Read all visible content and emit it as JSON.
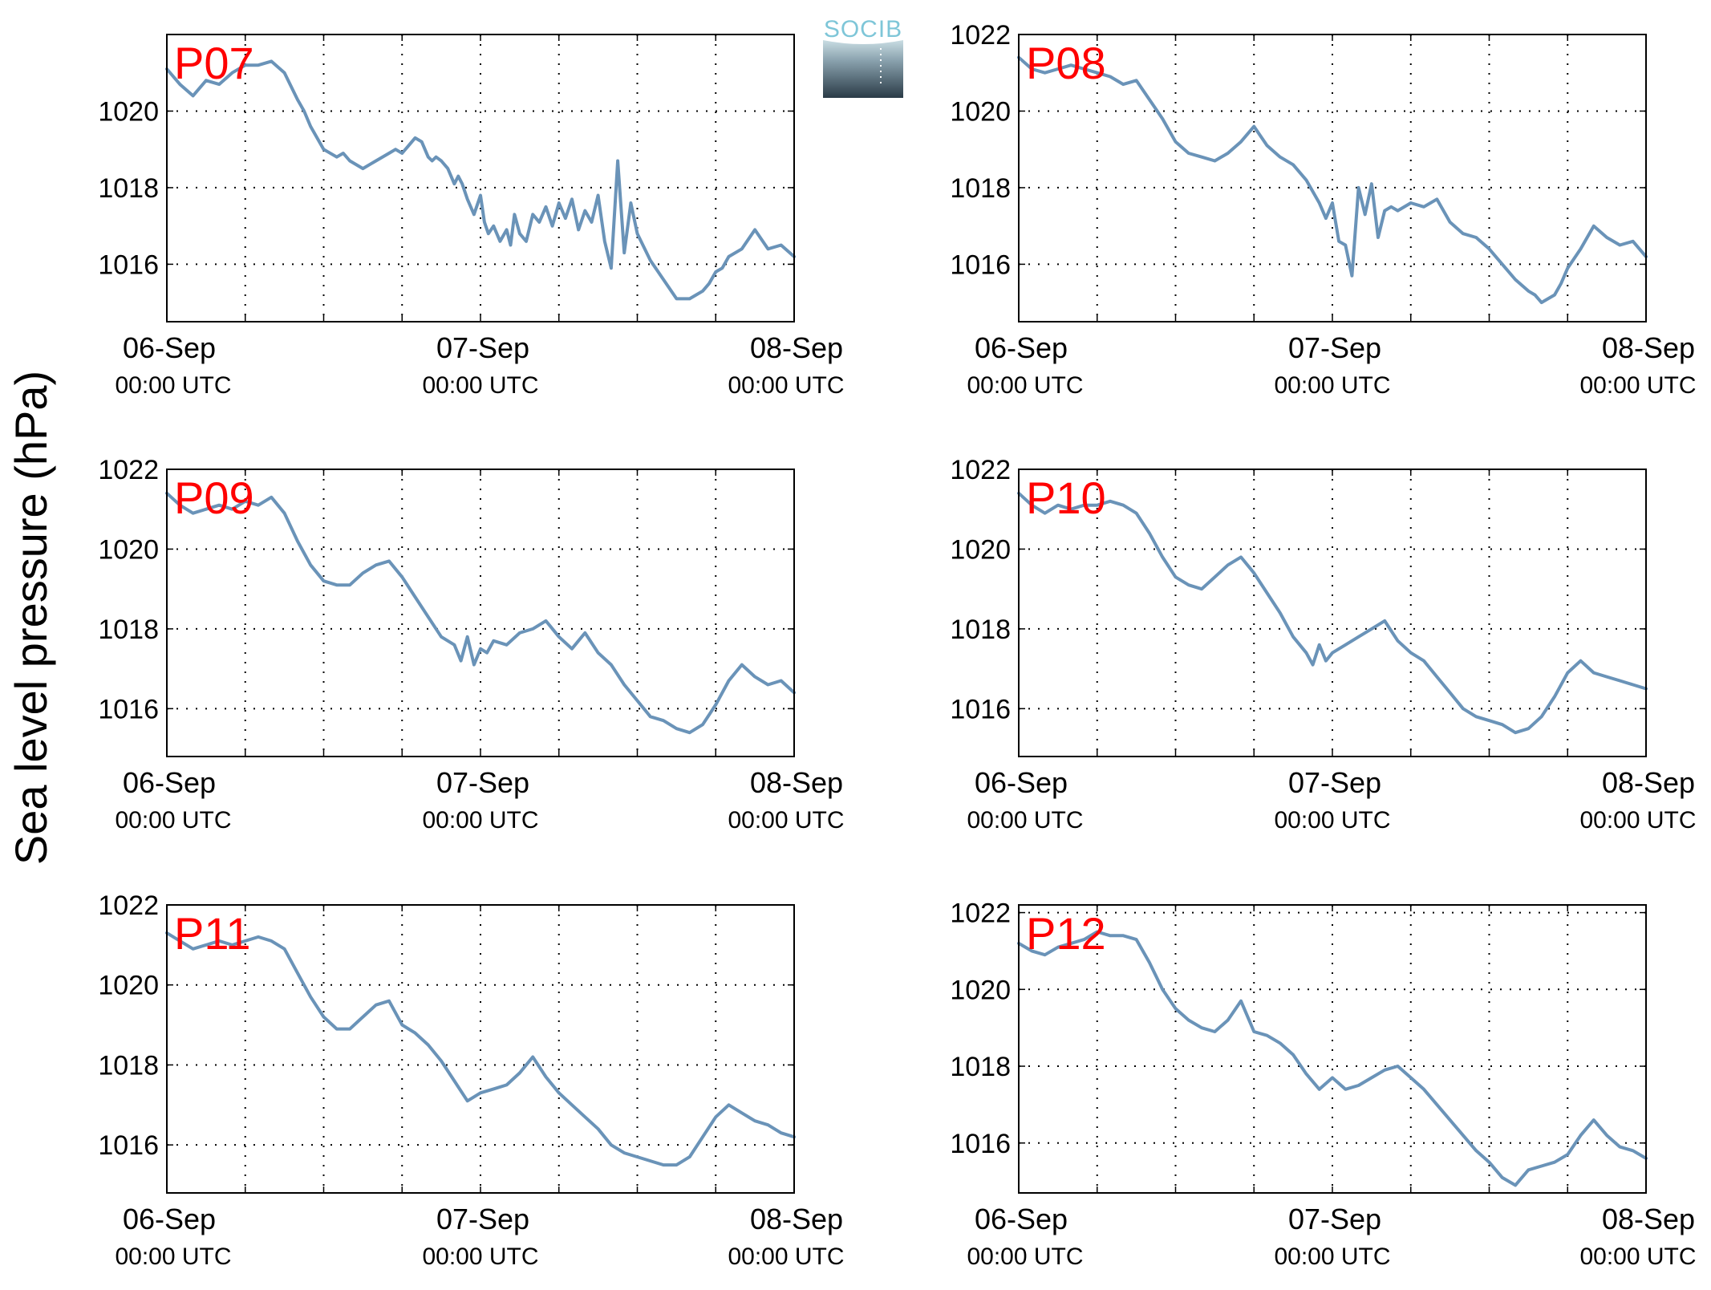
{
  "figure": {
    "ylabel": "Sea level pressure (hPa)",
    "logo_text": "SOCIB",
    "colors": {
      "line": "#6a93b8",
      "label": "#ff0000",
      "axis": "#000000",
      "grid": "#000000",
      "logo_top": "#7ec6d8",
      "logo_bottom": "#2a3b47"
    }
  },
  "chart_data": [
    {
      "type": "line",
      "title": "P07",
      "grid": true,
      "x_ticks": [
        "06-Sep",
        "07-Sep",
        "08-Sep"
      ],
      "x_ticks_sub": [
        "00:00 UTC",
        "00:00 UTC",
        "00:00 UTC"
      ],
      "xlim": [
        0,
        48
      ],
      "ylim": [
        1014.5,
        1022.0
      ],
      "y_ticks": [
        1016,
        1018,
        1020
      ],
      "x": [
        0,
        1,
        2,
        3,
        4,
        5,
        6,
        7,
        8,
        9,
        10,
        10.5,
        11,
        12,
        13,
        13.5,
        14,
        15,
        15.5,
        16,
        17,
        17.5,
        18,
        19,
        19.5,
        20,
        20.3,
        20.6,
        21,
        21.5,
        22,
        22.3,
        22.6,
        23,
        23.5,
        24,
        24.3,
        24.6,
        25,
        25.5,
        26,
        26.3,
        26.6,
        27,
        27.5,
        28,
        28.5,
        29,
        29.5,
        30,
        30.5,
        31,
        31.5,
        32,
        32.5,
        33,
        33.5,
        34,
        34.5,
        35,
        35.5,
        36,
        37,
        38,
        39,
        40,
        40.5,
        41,
        41.5,
        42,
        42.5,
        43,
        44,
        45,
        46,
        47,
        48
      ],
      "y": [
        1021.1,
        1020.7,
        1020.4,
        1020.8,
        1020.7,
        1021.0,
        1021.2,
        1021.2,
        1021.3,
        1021.0,
        1020.3,
        1020.0,
        1019.6,
        1019.0,
        1018.8,
        1018.9,
        1018.7,
        1018.5,
        1018.6,
        1018.7,
        1018.9,
        1019.0,
        1018.9,
        1019.3,
        1019.2,
        1018.8,
        1018.7,
        1018.8,
        1018.7,
        1018.5,
        1018.1,
        1018.3,
        1018.1,
        1017.7,
        1017.3,
        1017.8,
        1017.1,
        1016.8,
        1017.0,
        1016.6,
        1016.9,
        1016.5,
        1017.3,
        1016.8,
        1016.6,
        1017.3,
        1017.1,
        1017.5,
        1017.0,
        1017.6,
        1017.2,
        1017.7,
        1016.9,
        1017.4,
        1017.1,
        1017.8,
        1016.6,
        1015.9,
        1018.7,
        1016.3,
        1017.6,
        1016.8,
        1016.1,
        1015.6,
        1015.1,
        1015.1,
        1015.2,
        1015.3,
        1015.5,
        1015.8,
        1015.9,
        1016.2,
        1016.4,
        1016.9,
        1016.4,
        1016.5,
        1016.2
      ]
    },
    {
      "type": "line",
      "title": "P08",
      "grid": true,
      "x_ticks": [
        "06-Sep",
        "07-Sep",
        "08-Sep"
      ],
      "x_ticks_sub": [
        "00:00 UTC",
        "00:00 UTC",
        "00:00 UTC"
      ],
      "xlim": [
        0,
        48
      ],
      "ylim": [
        1014.5,
        1022.0
      ],
      "y_ticks": [
        1016,
        1018,
        1020,
        1022
      ],
      "x": [
        0,
        1,
        2,
        3,
        4,
        5,
        6,
        7,
        8,
        9,
        10,
        11,
        12,
        13,
        14,
        15,
        16,
        17,
        18,
        19,
        20,
        21,
        22,
        23,
        23.5,
        24,
        24.5,
        25,
        25.5,
        26,
        26.5,
        27,
        27.5,
        28,
        28.5,
        29,
        30,
        31,
        32,
        33,
        34,
        35,
        36,
        37,
        38,
        39,
        39.5,
        40,
        40.5,
        41,
        41.5,
        42,
        43,
        44,
        45,
        46,
        47,
        48
      ],
      "y": [
        1021.4,
        1021.1,
        1021.0,
        1021.1,
        1021.2,
        1021.1,
        1021.0,
        1020.9,
        1020.7,
        1020.8,
        1020.3,
        1019.8,
        1019.2,
        1018.9,
        1018.8,
        1018.7,
        1018.9,
        1019.2,
        1019.6,
        1019.1,
        1018.8,
        1018.6,
        1018.2,
        1017.6,
        1017.2,
        1017.6,
        1016.6,
        1016.5,
        1015.7,
        1018.0,
        1017.3,
        1018.1,
        1016.7,
        1017.4,
        1017.5,
        1017.4,
        1017.6,
        1017.5,
        1017.7,
        1017.1,
        1016.8,
        1016.7,
        1016.4,
        1016.0,
        1015.6,
        1015.3,
        1015.2,
        1015.0,
        1015.1,
        1015.2,
        1015.5,
        1015.9,
        1016.4,
        1017.0,
        1016.7,
        1016.5,
        1016.6,
        1016.2
      ]
    },
    {
      "type": "line",
      "title": "P09",
      "grid": true,
      "x_ticks": [
        "06-Sep",
        "07-Sep",
        "08-Sep"
      ],
      "x_ticks_sub": [
        "00:00 UTC",
        "00:00 UTC",
        "00:00 UTC"
      ],
      "xlim": [
        0,
        48
      ],
      "ylim": [
        1014.8,
        1022.0
      ],
      "y_ticks": [
        1016,
        1018,
        1020,
        1022
      ],
      "x": [
        0,
        1,
        2,
        3,
        4,
        5,
        6,
        7,
        8,
        9,
        10,
        11,
        12,
        13,
        14,
        15,
        16,
        17,
        18,
        19,
        20,
        21,
        22,
        22.5,
        23,
        23.5,
        24,
        24.5,
        25,
        26,
        27,
        28,
        29,
        30,
        31,
        32,
        33,
        34,
        35,
        36,
        37,
        38,
        39,
        40,
        41,
        42,
        43,
        44,
        45,
        46,
        47,
        48
      ],
      "y": [
        1021.4,
        1021.1,
        1020.9,
        1021.0,
        1021.1,
        1021.0,
        1021.2,
        1021.1,
        1021.3,
        1020.9,
        1020.2,
        1019.6,
        1019.2,
        1019.1,
        1019.1,
        1019.4,
        1019.6,
        1019.7,
        1019.3,
        1018.8,
        1018.3,
        1017.8,
        1017.6,
        1017.2,
        1017.8,
        1017.1,
        1017.5,
        1017.4,
        1017.7,
        1017.6,
        1017.9,
        1018.0,
        1018.2,
        1017.8,
        1017.5,
        1017.9,
        1017.4,
        1017.1,
        1016.6,
        1016.2,
        1015.8,
        1015.7,
        1015.5,
        1015.4,
        1015.6,
        1016.1,
        1016.7,
        1017.1,
        1016.8,
        1016.6,
        1016.7,
        1016.4
      ]
    },
    {
      "type": "line",
      "title": "P10",
      "grid": true,
      "x_ticks": [
        "06-Sep",
        "07-Sep",
        "08-Sep"
      ],
      "x_ticks_sub": [
        "00:00 UTC",
        "00:00 UTC",
        "00:00 UTC"
      ],
      "xlim": [
        0,
        48
      ],
      "ylim": [
        1014.8,
        1022.0
      ],
      "y_ticks": [
        1016,
        1018,
        1020,
        1022
      ],
      "x": [
        0,
        1,
        2,
        3,
        4,
        5,
        6,
        7,
        8,
        9,
        10,
        11,
        12,
        13,
        14,
        15,
        16,
        17,
        18,
        19,
        20,
        21,
        22,
        22.5,
        23,
        23.5,
        24,
        25,
        26,
        27,
        28,
        29,
        30,
        31,
        32,
        33,
        34,
        35,
        36,
        37,
        38,
        39,
        40,
        41,
        42,
        43,
        44,
        45,
        46,
        47,
        48
      ],
      "y": [
        1021.4,
        1021.1,
        1020.9,
        1021.1,
        1021.0,
        1021.1,
        1021.1,
        1021.2,
        1021.1,
        1020.9,
        1020.4,
        1019.8,
        1019.3,
        1019.1,
        1019.0,
        1019.3,
        1019.6,
        1019.8,
        1019.4,
        1018.9,
        1018.4,
        1017.8,
        1017.4,
        1017.1,
        1017.6,
        1017.2,
        1017.4,
        1017.6,
        1017.8,
        1018.0,
        1018.2,
        1017.7,
        1017.4,
        1017.2,
        1016.8,
        1016.4,
        1016.0,
        1015.8,
        1015.7,
        1015.6,
        1015.4,
        1015.5,
        1015.8,
        1016.3,
        1016.9,
        1017.2,
        1016.9,
        1016.8,
        1016.7,
        1016.6,
        1016.5
      ]
    },
    {
      "type": "line",
      "title": "P11",
      "grid": true,
      "x_ticks": [
        "06-Sep",
        "07-Sep",
        "08-Sep"
      ],
      "x_ticks_sub": [
        "00:00 UTC",
        "00:00 UTC",
        "00:00 UTC"
      ],
      "xlim": [
        0,
        48
      ],
      "ylim": [
        1014.8,
        1022.0
      ],
      "y_ticks": [
        1016,
        1018,
        1020,
        1022
      ],
      "x": [
        0,
        1,
        2,
        3,
        4,
        5,
        6,
        7,
        8,
        9,
        10,
        11,
        12,
        13,
        14,
        15,
        16,
        17,
        18,
        19,
        20,
        21,
        22,
        23,
        23.5,
        24,
        25,
        26,
        27,
        28,
        29,
        30,
        31,
        32,
        33,
        34,
        35,
        36,
        37,
        38,
        39,
        40,
        41,
        42,
        43,
        44,
        45,
        46,
        47,
        48
      ],
      "y": [
        1021.3,
        1021.1,
        1020.9,
        1021.0,
        1021.1,
        1021.0,
        1021.1,
        1021.2,
        1021.1,
        1020.9,
        1020.3,
        1019.7,
        1019.2,
        1018.9,
        1018.9,
        1019.2,
        1019.5,
        1019.6,
        1019.0,
        1018.8,
        1018.5,
        1018.1,
        1017.6,
        1017.1,
        1017.2,
        1017.3,
        1017.4,
        1017.5,
        1017.8,
        1018.2,
        1017.7,
        1017.3,
        1017.0,
        1016.7,
        1016.4,
        1016.0,
        1015.8,
        1015.7,
        1015.6,
        1015.5,
        1015.5,
        1015.7,
        1016.2,
        1016.7,
        1017.0,
        1016.8,
        1016.6,
        1016.5,
        1016.3,
        1016.2
      ]
    },
    {
      "type": "line",
      "title": "P12",
      "grid": true,
      "x_ticks": [
        "06-Sep",
        "07-Sep",
        "08-Sep"
      ],
      "x_ticks_sub": [
        "00:00 UTC",
        "00:00 UTC",
        "00:00 UTC"
      ],
      "xlim": [
        0,
        48
      ],
      "ylim": [
        1014.7,
        1022.2
      ],
      "y_ticks": [
        1016,
        1018,
        1020,
        1022
      ],
      "x": [
        0,
        1,
        2,
        3,
        4,
        5,
        6,
        7,
        8,
        9,
        10,
        11,
        12,
        13,
        14,
        15,
        16,
        17,
        18,
        19,
        20,
        21,
        22,
        23,
        24,
        25,
        26,
        27,
        28,
        29,
        30,
        31,
        32,
        33,
        34,
        35,
        36,
        37,
        38,
        39,
        40,
        41,
        42,
        43,
        44,
        45,
        46,
        47,
        48
      ],
      "y": [
        1021.2,
        1021.0,
        1020.9,
        1021.1,
        1021.2,
        1021.3,
        1021.5,
        1021.4,
        1021.4,
        1021.3,
        1020.7,
        1020.0,
        1019.5,
        1019.2,
        1019.0,
        1018.9,
        1019.2,
        1019.7,
        1018.9,
        1018.8,
        1018.6,
        1018.3,
        1017.8,
        1017.4,
        1017.7,
        1017.4,
        1017.5,
        1017.7,
        1017.9,
        1018.0,
        1017.7,
        1017.4,
        1017.0,
        1016.6,
        1016.2,
        1015.8,
        1015.5,
        1015.1,
        1014.9,
        1015.3,
        1015.4,
        1015.5,
        1015.7,
        1016.2,
        1016.6,
        1016.2,
        1015.9,
        1015.8,
        1015.6
      ]
    }
  ]
}
